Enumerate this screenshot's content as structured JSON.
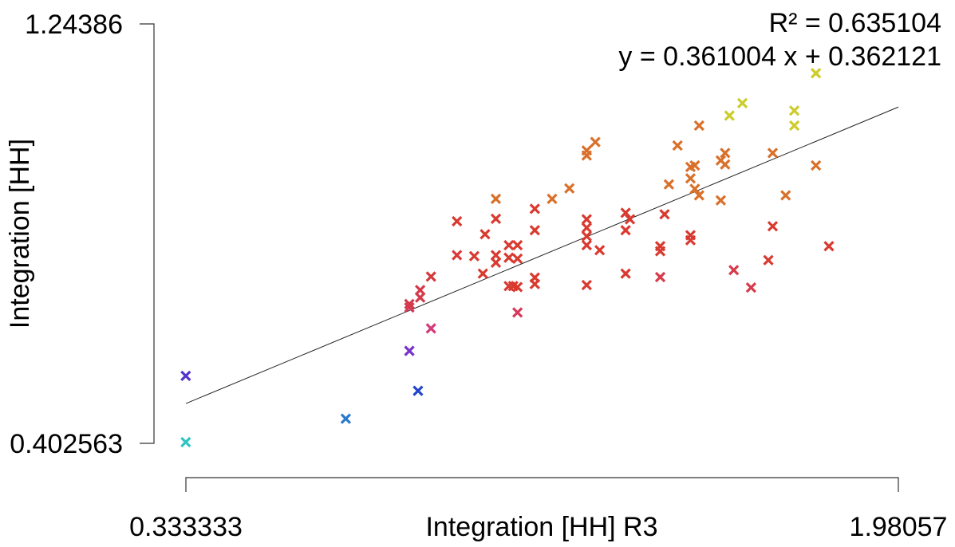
{
  "chart_data": {
    "type": "scatter",
    "title": "",
    "xlabel": "Integration [HH] R3",
    "ylabel": "Integration [HH]",
    "x_ticks": [
      "0.333333",
      "1.98057"
    ],
    "y_ticks": [
      "1.24386",
      "0.402563"
    ],
    "xlim": [
      0.333333,
      1.98057
    ],
    "ylim": [
      0.402563,
      1.24386
    ],
    "grid": false,
    "annotations": {
      "r_squared": "R² = 0.635104",
      "equation": "y = 0.361004 x + 0.362121"
    },
    "regression": {
      "slope": 0.361004,
      "intercept": 0.362121
    },
    "points": [
      {
        "x": 0.333,
        "y": 0.405,
        "color": "#2ec4c4"
      },
      {
        "x": 0.333,
        "y": 0.538,
        "color": "#5533cc"
      },
      {
        "x": 0.703,
        "y": 0.452,
        "color": "#2a7acc"
      },
      {
        "x": 0.9,
        "y": 0.633,
        "color": "#d43a78"
      },
      {
        "x": 0.85,
        "y": 0.588,
        "color": "#7733cc"
      },
      {
        "x": 0.87,
        "y": 0.508,
        "color": "#2244cc"
      },
      {
        "x": 0.85,
        "y": 0.675,
        "color": "#d43a5a"
      },
      {
        "x": 0.85,
        "y": 0.682,
        "color": "#d43a4a"
      },
      {
        "x": 0.875,
        "y": 0.695,
        "color": "#d43a4a"
      },
      {
        "x": 0.875,
        "y": 0.71,
        "color": "#d43a4a"
      },
      {
        "x": 0.9,
        "y": 0.737,
        "color": "#d43a3a"
      },
      {
        "x": 0.96,
        "y": 0.78,
        "color": "#d93838"
      },
      {
        "x": 0.96,
        "y": 0.848,
        "color": "#d93a30"
      },
      {
        "x": 1.0,
        "y": 0.778,
        "color": "#d93a30"
      },
      {
        "x": 1.02,
        "y": 0.743,
        "color": "#d93a30"
      },
      {
        "x": 1.025,
        "y": 0.822,
        "color": "#d93a30"
      },
      {
        "x": 1.05,
        "y": 0.78,
        "color": "#d93a30"
      },
      {
        "x": 1.05,
        "y": 0.765,
        "color": "#d93a30"
      },
      {
        "x": 1.05,
        "y": 0.853,
        "color": "#d93a30"
      },
      {
        "x": 1.05,
        "y": 0.893,
        "color": "#d9702a"
      },
      {
        "x": 1.08,
        "y": 0.718,
        "color": "#d93a30"
      },
      {
        "x": 1.08,
        "y": 0.8,
        "color": "#d93a30"
      },
      {
        "x": 1.08,
        "y": 0.775,
        "color": "#d93a30"
      },
      {
        "x": 1.09,
        "y": 0.718,
        "color": "#d93a30"
      },
      {
        "x": 1.1,
        "y": 0.8,
        "color": "#d93a30"
      },
      {
        "x": 1.1,
        "y": 0.773,
        "color": "#d93a30"
      },
      {
        "x": 1.1,
        "y": 0.716,
        "color": "#d93a30"
      },
      {
        "x": 1.1,
        "y": 0.665,
        "color": "#d43a5a"
      },
      {
        "x": 1.14,
        "y": 0.83,
        "color": "#d93a30"
      },
      {
        "x": 1.14,
        "y": 0.873,
        "color": "#d93a30"
      },
      {
        "x": 1.18,
        "y": 0.893,
        "color": "#d9702a"
      },
      {
        "x": 1.14,
        "y": 0.722,
        "color": "#d93a30"
      },
      {
        "x": 1.14,
        "y": 0.735,
        "color": "#d93a30"
      },
      {
        "x": 1.22,
        "y": 0.914,
        "color": "#d9702a"
      },
      {
        "x": 1.26,
        "y": 0.852,
        "color": "#d93a30"
      },
      {
        "x": 1.26,
        "y": 0.835,
        "color": "#d93a30"
      },
      {
        "x": 1.26,
        "y": 0.818,
        "color": "#d93a30"
      },
      {
        "x": 1.26,
        "y": 0.8,
        "color": "#d93a30"
      },
      {
        "x": 1.26,
        "y": 0.72,
        "color": "#d93a30"
      },
      {
        "x": 1.26,
        "y": 0.98,
        "color": "#d9702a"
      },
      {
        "x": 1.26,
        "y": 0.99,
        "color": "#d9702a"
      },
      {
        "x": 1.28,
        "y": 1.007,
        "color": "#d9702a"
      },
      {
        "x": 1.29,
        "y": 0.79,
        "color": "#d93a30"
      },
      {
        "x": 1.35,
        "y": 0.865,
        "color": "#d93a30"
      },
      {
        "x": 1.36,
        "y": 0.852,
        "color": "#d93a30"
      },
      {
        "x": 1.35,
        "y": 0.83,
        "color": "#d93a30"
      },
      {
        "x": 1.35,
        "y": 0.743,
        "color": "#d93a30"
      },
      {
        "x": 1.43,
        "y": 0.788,
        "color": "#d93a30"
      },
      {
        "x": 1.43,
        "y": 0.798,
        "color": "#d93a30"
      },
      {
        "x": 1.43,
        "y": 0.736,
        "color": "#d93a4a"
      },
      {
        "x": 1.44,
        "y": 0.862,
        "color": "#d93a30"
      },
      {
        "x": 1.45,
        "y": 0.922,
        "color": "#d9702a"
      },
      {
        "x": 1.47,
        "y": 1.0,
        "color": "#d9702a"
      },
      {
        "x": 1.5,
        "y": 0.934,
        "color": "#d9702a"
      },
      {
        "x": 1.5,
        "y": 0.957,
        "color": "#d9702a"
      },
      {
        "x": 1.51,
        "y": 0.96,
        "color": "#d9702a"
      },
      {
        "x": 1.51,
        "y": 0.913,
        "color": "#d9702a"
      },
      {
        "x": 1.52,
        "y": 0.9,
        "color": "#d9702a"
      },
      {
        "x": 1.52,
        "y": 1.04,
        "color": "#d9702a"
      },
      {
        "x": 1.5,
        "y": 0.82,
        "color": "#d93a30"
      },
      {
        "x": 1.5,
        "y": 0.81,
        "color": "#d93a30"
      },
      {
        "x": 1.57,
        "y": 0.89,
        "color": "#d9702a"
      },
      {
        "x": 1.57,
        "y": 0.97,
        "color": "#d9702a"
      },
      {
        "x": 1.58,
        "y": 0.985,
        "color": "#d9702a"
      },
      {
        "x": 1.58,
        "y": 0.962,
        "color": "#d9702a"
      },
      {
        "x": 1.59,
        "y": 1.06,
        "color": "#cccc2a"
      },
      {
        "x": 1.62,
        "y": 1.085,
        "color": "#cccc2a"
      },
      {
        "x": 1.6,
        "y": 0.75,
        "color": "#d93a4a"
      },
      {
        "x": 1.64,
        "y": 0.715,
        "color": "#d93a4a"
      },
      {
        "x": 1.68,
        "y": 0.77,
        "color": "#d93a30"
      },
      {
        "x": 1.69,
        "y": 0.838,
        "color": "#d93a30"
      },
      {
        "x": 1.69,
        "y": 0.985,
        "color": "#d9702a"
      },
      {
        "x": 1.72,
        "y": 0.9,
        "color": "#d9702a"
      },
      {
        "x": 1.74,
        "y": 1.07,
        "color": "#cccc2a"
      },
      {
        "x": 1.74,
        "y": 1.04,
        "color": "#cccc2a"
      },
      {
        "x": 1.79,
        "y": 1.145,
        "color": "#cccc2a"
      },
      {
        "x": 1.79,
        "y": 0.96,
        "color": "#d9702a"
      },
      {
        "x": 1.82,
        "y": 0.798,
        "color": "#d93a30"
      }
    ]
  }
}
